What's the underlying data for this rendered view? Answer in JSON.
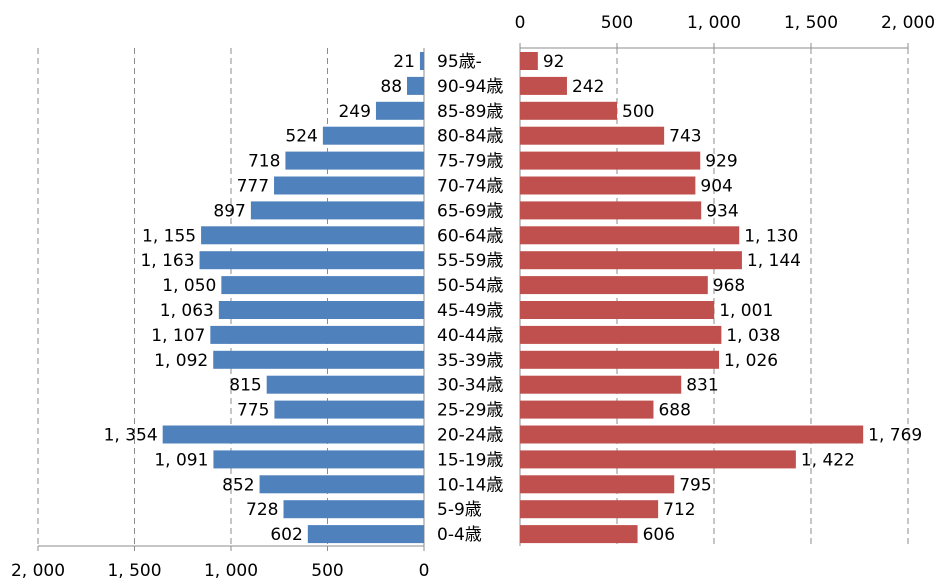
{
  "chart_data": {
    "type": "bar",
    "orientation": "horizontal",
    "layout": "population-pyramid",
    "categories": [
      "95歳-",
      "90-94歳",
      "85-89歳",
      "80-84歳",
      "75-79歳",
      "70-74歳",
      "65-69歳",
      "60-64歳",
      "55-59歳",
      "50-54歳",
      "45-49歳",
      "40-44歳",
      "35-39歳",
      "30-34歳",
      "25-29歳",
      "20-24歳",
      "15-19歳",
      "10-14歳",
      "5-9歳",
      "0-4歳"
    ],
    "series": [
      {
        "side": "left",
        "color": "#4f81bd",
        "values": [
          21,
          88,
          249,
          524,
          718,
          777,
          897,
          1155,
          1163,
          1050,
          1063,
          1107,
          1092,
          815,
          775,
          1354,
          1091,
          852,
          728,
          602
        ],
        "labels": [
          "21",
          "88",
          "249",
          "524",
          "718",
          "777",
          "897",
          "1, 155",
          "1, 163",
          "1, 050",
          "1, 063",
          "1, 107",
          "1, 092",
          "815",
          "775",
          "1, 354",
          "1, 091",
          "852",
          "728",
          "602"
        ]
      },
      {
        "side": "right",
        "color": "#c0504d",
        "values": [
          92,
          242,
          500,
          743,
          929,
          904,
          934,
          1130,
          1144,
          968,
          1001,
          1038,
          1026,
          831,
          688,
          1769,
          1422,
          795,
          712,
          606
        ],
        "labels": [
          "92",
          "242",
          "500",
          "743",
          "929",
          "904",
          "934",
          "1, 130",
          "1, 144",
          "968",
          "1, 001",
          "1, 038",
          "1, 026",
          "831",
          "688",
          "1, 769",
          "1, 422",
          "795",
          "712",
          "606"
        ]
      }
    ],
    "left_axis": {
      "position": "bottom",
      "range": [
        0,
        2000
      ],
      "ticks": [
        2000,
        1500,
        1000,
        500,
        0
      ],
      "tick_labels": [
        "2, 000",
        "1, 500",
        "1, 000",
        "500",
        "0"
      ]
    },
    "right_axis": {
      "position": "top",
      "range": [
        0,
        2000
      ],
      "ticks": [
        0,
        500,
        1000,
        1500,
        2000
      ],
      "tick_labels": [
        "0",
        "500",
        "1, 000",
        "1, 500",
        "2, 000"
      ]
    },
    "grid": true
  }
}
